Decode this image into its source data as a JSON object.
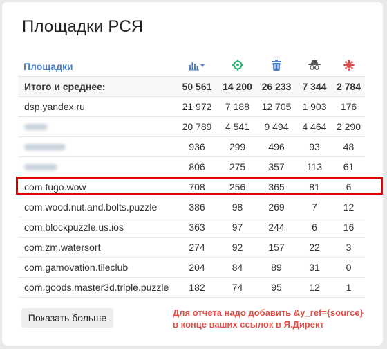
{
  "panel": {
    "title": "Площадки РСЯ"
  },
  "table": {
    "header_label": "Площадки",
    "columns": [
      {
        "icon": "bar-chart-sort-icon",
        "color": "#4a7fc4"
      },
      {
        "icon": "target-icon",
        "color": "#2bb673"
      },
      {
        "icon": "trash-icon",
        "color": "#4a7fc4"
      },
      {
        "icon": "spy-icon",
        "color": "#555555"
      },
      {
        "icon": "virus-icon",
        "color": "#e04848"
      }
    ],
    "total": {
      "label": "Итого и среднее:",
      "values": [
        "50 561",
        "14 200",
        "26 233",
        "7 344",
        "2 784"
      ]
    },
    "rows": [
      {
        "name": "dsp.yandex.ru",
        "values": [
          "21 972",
          "7 188",
          "12 705",
          "1 903",
          "176"
        ]
      },
      {
        "name": "",
        "values": [
          "20 789",
          "4 541",
          "9 494",
          "4 464",
          "2 290"
        ]
      },
      {
        "name": "",
        "values": [
          "936",
          "299",
          "496",
          "93",
          "48"
        ]
      },
      {
        "name": "",
        "values": [
          "806",
          "275",
          "357",
          "113",
          "61"
        ]
      },
      {
        "name": "com.fugo.wow",
        "values": [
          "708",
          "256",
          "365",
          "81",
          "6"
        ]
      },
      {
        "name": "com.wood.nut.and.bolts.puzzle",
        "values": [
          "386",
          "98",
          "269",
          "7",
          "12"
        ]
      },
      {
        "name": "com.blockpuzzle.us.ios",
        "values": [
          "363",
          "97",
          "244",
          "6",
          "16"
        ]
      },
      {
        "name": "com.zm.watersort",
        "values": [
          "274",
          "92",
          "157",
          "22",
          "3"
        ]
      },
      {
        "name": "com.gamovation.tileclub",
        "values": [
          "204",
          "84",
          "89",
          "31",
          "0"
        ]
      },
      {
        "name": "com.goods.master3d.triple.puzzle",
        "values": [
          "182",
          "74",
          "95",
          "12",
          "1"
        ]
      }
    ]
  },
  "footer": {
    "show_more_label": "Показать больше",
    "note_line1": "Для отчета надо добавить &y_ref={source}",
    "note_line2": "в конце ваших ссылок в Я.Директ"
  },
  "colors": {
    "accent": "#4a7fc4",
    "highlight": "#e10000",
    "note": "#e0504a"
  }
}
